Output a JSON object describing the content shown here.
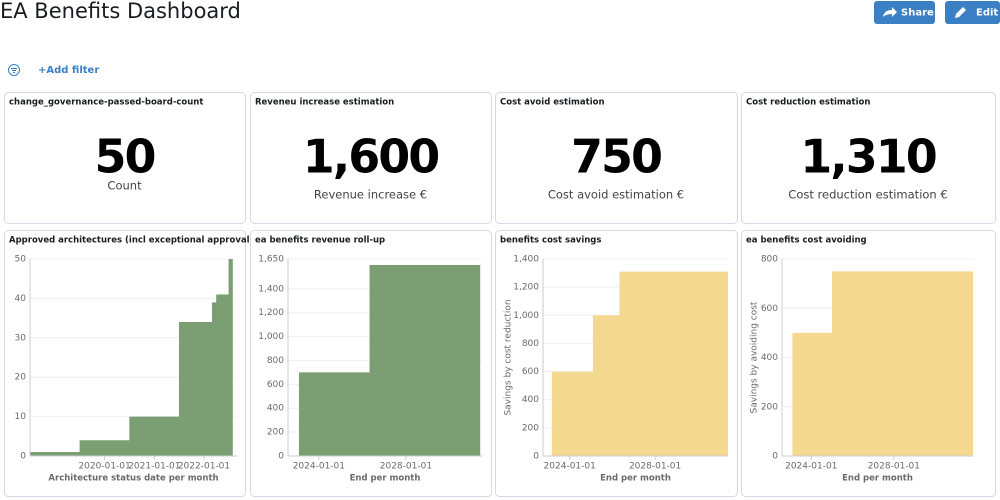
{
  "header": {
    "title": "EA Benefits Dashboard",
    "buttons": [
      "Share",
      "Edit"
    ]
  },
  "filter": {
    "add": "+Add filter"
  },
  "metrics": [
    {
      "title": "change_governance-passed-board-count",
      "value": 50,
      "unit": "Count"
    },
    {
      "title": "Reveneu increase estimation",
      "value": 1600,
      "value_label": "1,600",
      "unit": "Revenue increase €"
    },
    {
      "title": "Cost avoid estimation",
      "value": 750,
      "unit": "Cost avoid estimation €"
    },
    {
      "title": "Cost reduction estimation",
      "value": 1310,
      "value_label": "1,310",
      "unit": "Cost reduction estimation €"
    }
  ],
  "chart_data": [
    {
      "type": "step-area",
      "title": "Approved architectures (incl exceptional approval...",
      "x_label": "Architecture status date per month",
      "color": "#7b9e72",
      "x": [
        "2018-07-01",
        "2019-07-01",
        "2020-07-01",
        "2021-07-01",
        "2022-03-01",
        "2022-04-01",
        "2022-07-01",
        "2022-08-01"
      ],
      "values": [
        1,
        4,
        10,
        34,
        39,
        41,
        50,
        50
      ],
      "xlim": [
        "2018-07-01",
        "2022-09-01"
      ],
      "xticks": [
        "2020-01-01",
        "2021-01-01",
        "2022-01-01"
      ],
      "ylim": [
        0,
        50
      ],
      "yticks": [
        0,
        10,
        20,
        30,
        40,
        50
      ],
      "grid": true
    },
    {
      "type": "step-area",
      "title": "ea benefits revenue roll-up",
      "x_label": "End per month",
      "color": "#7b9e72",
      "x": [
        "2023-02-01",
        "2026-05-01",
        "2031-06-01"
      ],
      "values": [
        700,
        1600,
        1600
      ],
      "xlim": [
        "2022-08-01",
        "2031-07-01"
      ],
      "xticks": [
        "2024-01-01",
        "2028-01-01"
      ],
      "ylim": [
        0,
        1650
      ],
      "yticks": [
        0,
        200,
        400,
        600,
        800,
        {
          "value": 1000,
          "label": "1,000"
        },
        {
          "value": 1200,
          "label": "1,200"
        },
        {
          "value": 1400,
          "label": "1,400"
        },
        {
          "value": 1650,
          "label": "1,650"
        }
      ],
      "grid": true
    },
    {
      "type": "step-area",
      "title": "benefits cost savings",
      "x_label": "End per month",
      "y_label": "Savings by cost reduction",
      "color": "#f5d890",
      "x": [
        "2023-03-01",
        "2025-02-01",
        "2026-05-01",
        "2031-06-01"
      ],
      "values": [
        600,
        1000,
        1310,
        1310
      ],
      "xlim": [
        "2022-10-01",
        "2031-06-01"
      ],
      "xticks": [
        "2024-01-01",
        "2028-01-01"
      ],
      "ylim": [
        0,
        1400
      ],
      "yticks": [
        0,
        200,
        400,
        600,
        800,
        {
          "value": 1000,
          "label": "1,000"
        },
        {
          "value": 1200,
          "label": "1,200"
        },
        {
          "value": 1400,
          "label": "1,400"
        }
      ],
      "grid": true
    },
    {
      "type": "step-area",
      "title": "ea benefits cost avoiding",
      "x_label": "End per month",
      "y_label": "Savings by avoiding cost",
      "color": "#f5d890",
      "x": [
        "2023-02-01",
        "2025-01-01",
        "2031-11-01"
      ],
      "values": [
        500,
        750,
        750
      ],
      "xlim": [
        "2022-08-01",
        "2031-11-01"
      ],
      "xticks": [
        "2024-01-01",
        "2028-01-01"
      ],
      "ylim": [
        0,
        800
      ],
      "yticks": [
        0,
        200,
        400,
        600,
        800
      ],
      "grid": true
    }
  ]
}
